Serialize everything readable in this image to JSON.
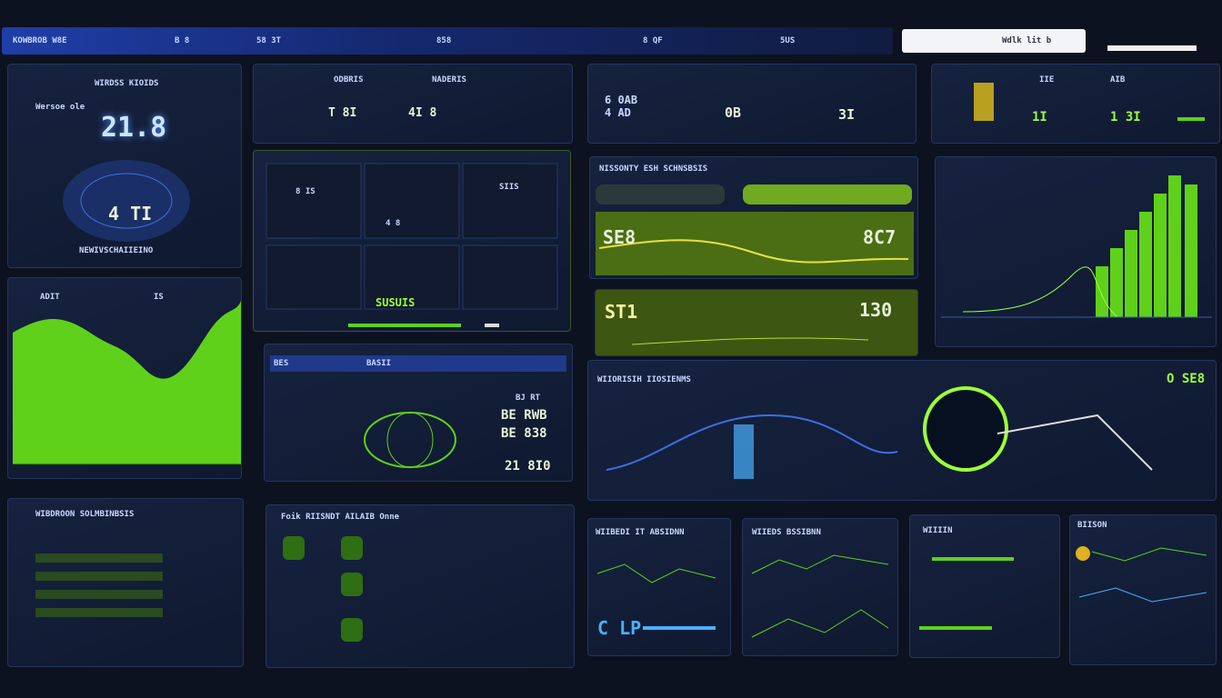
{
  "header": {
    "items": [
      "KOWBROB W8E",
      "B 8",
      "58 3T",
      "858",
      "8 QF",
      "5US"
    ],
    "search": "Wdlk lit b"
  },
  "panels": [
    {
      "title": "WIRDSS KIOIDS",
      "labels": [
        "Wersoe ole",
        "21.8",
        "4 TI",
        "NEWIVSCHAIIEINO"
      ]
    },
    {
      "title": "ADIT",
      "labels": [
        "IS"
      ]
    },
    {
      "title": "ODBRIS",
      "labels": [
        "NADERIS",
        "T 8I",
        "4I 8"
      ]
    },
    {
      "title": "SUSUIS",
      "labels": [
        "8 IS",
        "SIIS",
        "4 8"
      ]
    },
    {
      "title": "6 0AB",
      "labels": [
        "4 AD",
        "0B",
        "3I"
      ]
    },
    {
      "title": "IIE",
      "labels": [
        "AIB",
        "1I",
        "1 3I"
      ]
    },
    {
      "title": "NISSONTY ESH SCHNSBSIS",
      "labels": [
        "SE8",
        "8C7"
      ]
    },
    {
      "title": "ST1",
      "labels": [
        "130"
      ]
    },
    {
      "title": "BES",
      "labels": [
        "BASII",
        "BJ RT",
        "BE RWB",
        "BE 838",
        "21 8I0"
      ]
    },
    {
      "title": "WIIORISIH IIOSIENMS",
      "labels": [
        "O SE8"
      ]
    },
    {
      "title": "WIBDROON SOLMBINBSIS",
      "labels": []
    },
    {
      "title": "Foik RIISNDT AILAIB Onne",
      "labels": []
    },
    {
      "title": "WIIBEDI IT ABSIDNN",
      "labels": [
        "C LP"
      ]
    },
    {
      "title": "WIIEDS BSSIBNN",
      "labels": []
    },
    {
      "title": "WIIIIN",
      "labels": []
    },
    {
      "title": "BIISON",
      "labels": []
    }
  ]
}
